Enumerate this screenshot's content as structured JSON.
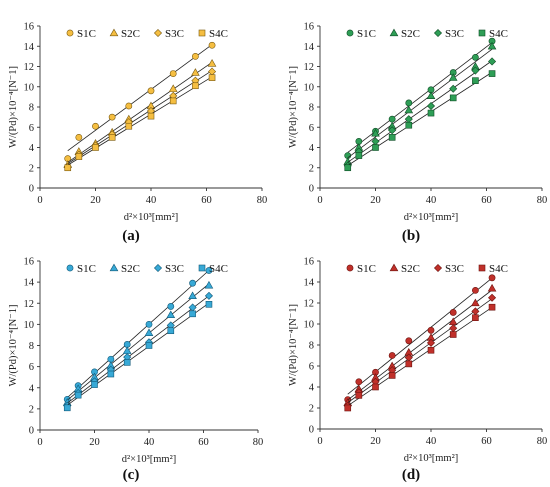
{
  "chart_data": [
    {
      "type": "scatter",
      "panel_label": "(a)",
      "xlabel": "d²×10³[mm²]",
      "ylabel": "W/(Pd)×10⁻⁴[N⁻1]",
      "xlim": [
        0,
        80
      ],
      "ylim": [
        0,
        16
      ],
      "xticks": [
        "0",
        "20",
        "40",
        "60",
        "80"
      ],
      "yticks": [
        "0",
        "2",
        "4",
        "6",
        "8",
        "10",
        "12",
        "14",
        "16"
      ],
      "legend_position": "top",
      "marker_fill": "#F5BE41",
      "marker_edge": "#7A5A10",
      "grid": false,
      "series": [
        {
          "name": "S1C",
          "marker": "circle",
          "x": [
            10,
            14,
            20,
            26,
            32,
            40,
            48,
            56,
            62
          ],
          "y": [
            2.9,
            5.0,
            6.1,
            7.0,
            8.1,
            9.6,
            11.3,
            13.0,
            14.1
          ]
        },
        {
          "name": "S2C",
          "marker": "triangle",
          "x": [
            10,
            14,
            20,
            26,
            32,
            40,
            48,
            56,
            62
          ],
          "y": [
            2.3,
            3.6,
            4.4,
            5.5,
            6.8,
            8.1,
            9.8,
            11.4,
            12.3
          ]
        },
        {
          "name": "S3C",
          "marker": "diamond",
          "x": [
            10,
            14,
            20,
            26,
            32,
            40,
            48,
            56,
            62
          ],
          "y": [
            2.1,
            3.3,
            4.2,
            5.3,
            6.5,
            7.6,
            9.1,
            10.6,
            11.5
          ]
        },
        {
          "name": "S4C",
          "marker": "square",
          "x": [
            10,
            14,
            20,
            26,
            32,
            40,
            48,
            56,
            62
          ],
          "y": [
            2.0,
            3.1,
            4.0,
            5.0,
            6.1,
            7.1,
            8.6,
            10.1,
            10.9
          ]
        }
      ]
    },
    {
      "type": "scatter",
      "panel_label": "(b)",
      "xlabel": "d²×10³[mm²]",
      "ylabel": "W/(Pd)×10⁻⁴[N⁻1]",
      "xlim": [
        0,
        80
      ],
      "ylim": [
        0,
        16
      ],
      "xticks": [
        "0",
        "20",
        "40",
        "60",
        "80"
      ],
      "yticks": [
        "0",
        "2",
        "4",
        "6",
        "8",
        "10",
        "12",
        "14",
        "16"
      ],
      "legend_position": "top",
      "marker_fill": "#2E9E56",
      "marker_edge": "#0F4D26",
      "grid": false,
      "series": [
        {
          "name": "S1C",
          "marker": "circle",
          "x": [
            10,
            14,
            20,
            26,
            32,
            40,
            48,
            56,
            62
          ],
          "y": [
            3.2,
            4.6,
            5.6,
            6.8,
            8.4,
            9.7,
            11.4,
            12.9,
            14.5
          ]
        },
        {
          "name": "S2C",
          "marker": "triangle",
          "x": [
            10,
            14,
            20,
            26,
            32,
            40,
            48,
            56,
            62
          ],
          "y": [
            2.6,
            4.0,
            5.4,
            6.1,
            7.7,
            9.1,
            10.9,
            12.0,
            14.0
          ]
        },
        {
          "name": "S3C",
          "marker": "diamond",
          "x": [
            10,
            14,
            20,
            26,
            32,
            40,
            48,
            56,
            62
          ],
          "y": [
            2.2,
            3.6,
            4.6,
            5.7,
            6.8,
            8.1,
            9.8,
            11.6,
            12.5
          ]
        },
        {
          "name": "S4C",
          "marker": "square",
          "x": [
            10,
            14,
            20,
            26,
            32,
            40,
            48,
            56,
            62
          ],
          "y": [
            2.0,
            3.2,
            4.0,
            5.0,
            6.2,
            7.4,
            8.9,
            10.6,
            11.3
          ]
        }
      ]
    },
    {
      "type": "scatter",
      "panel_label": "(c)",
      "xlabel": "d²×10³[mm²]",
      "ylabel": "W/(Pd)×10⁻⁴[N⁻1]",
      "xlim": [
        0,
        80
      ],
      "ylim": [
        0,
        16
      ],
      "xticks": [
        "0",
        "20",
        "40",
        "60",
        "80"
      ],
      "yticks": [
        "0",
        "2",
        "4",
        "6",
        "8",
        "10",
        "12",
        "14",
        "16"
      ],
      "legend_position": "top",
      "marker_fill": "#38A9D6",
      "marker_edge": "#125A7A",
      "grid": false,
      "series": [
        {
          "name": "S1C",
          "marker": "circle",
          "x": [
            10,
            14,
            20,
            26,
            32,
            40,
            48,
            56,
            62
          ],
          "y": [
            2.9,
            4.2,
            5.5,
            6.7,
            8.1,
            10.0,
            11.7,
            13.9,
            15.1
          ]
        },
        {
          "name": "S2C",
          "marker": "triangle",
          "x": [
            10,
            14,
            20,
            26,
            32,
            40,
            48,
            56,
            62
          ],
          "y": [
            2.6,
            3.9,
            5.0,
            6.1,
            7.5,
            9.2,
            10.9,
            12.7,
            13.7
          ]
        },
        {
          "name": "S3C",
          "marker": "diamond",
          "x": [
            10,
            14,
            20,
            26,
            32,
            40,
            48,
            56,
            62
          ],
          "y": [
            2.3,
            3.5,
            4.6,
            5.7,
            6.9,
            8.3,
            9.9,
            11.6,
            12.7
          ]
        },
        {
          "name": "S4C",
          "marker": "square",
          "x": [
            10,
            14,
            20,
            26,
            32,
            40,
            48,
            56,
            62
          ],
          "y": [
            2.1,
            3.3,
            4.3,
            5.3,
            6.4,
            8.0,
            9.4,
            11.0,
            11.9
          ]
        }
      ]
    },
    {
      "type": "scatter",
      "panel_label": "(d)",
      "xlabel": "d²×10³[mm²]",
      "ylabel": "W/(Pd)×10⁻⁴[N⁻1]",
      "xlim": [
        0,
        80
      ],
      "ylim": [
        0,
        16
      ],
      "xticks": [
        "0",
        "20",
        "40",
        "60",
        "80"
      ],
      "yticks": [
        "0",
        "2",
        "4",
        "6",
        "8",
        "10",
        "12",
        "14",
        "16"
      ],
      "legend_position": "top",
      "marker_fill": "#C0302A",
      "marker_edge": "#6E1410",
      "grid": false,
      "series": [
        {
          "name": "S1C",
          "marker": "circle",
          "x": [
            10,
            14,
            20,
            26,
            32,
            40,
            48,
            56,
            62
          ],
          "y": [
            2.8,
            4.5,
            5.4,
            7.0,
            8.4,
            9.4,
            11.1,
            13.2,
            14.4
          ]
        },
        {
          "name": "S2C",
          "marker": "triangle",
          "x": [
            10,
            14,
            20,
            26,
            32,
            40,
            48,
            56,
            62
          ],
          "y": [
            2.5,
            3.8,
            4.9,
            6.0,
            7.3,
            8.7,
            10.2,
            12.0,
            13.4
          ]
        },
        {
          "name": "S3C",
          "marker": "diamond",
          "x": [
            10,
            14,
            20,
            26,
            32,
            40,
            48,
            56,
            62
          ],
          "y": [
            2.2,
            3.5,
            4.5,
            5.6,
            6.8,
            8.2,
            9.6,
            11.2,
            12.5
          ]
        },
        {
          "name": "S4C",
          "marker": "square",
          "x": [
            10,
            14,
            20,
            26,
            32,
            40,
            48,
            56,
            62
          ],
          "y": [
            2.0,
            3.2,
            4.0,
            5.1,
            6.2,
            7.5,
            9.0,
            10.6,
            11.6
          ]
        }
      ]
    }
  ]
}
